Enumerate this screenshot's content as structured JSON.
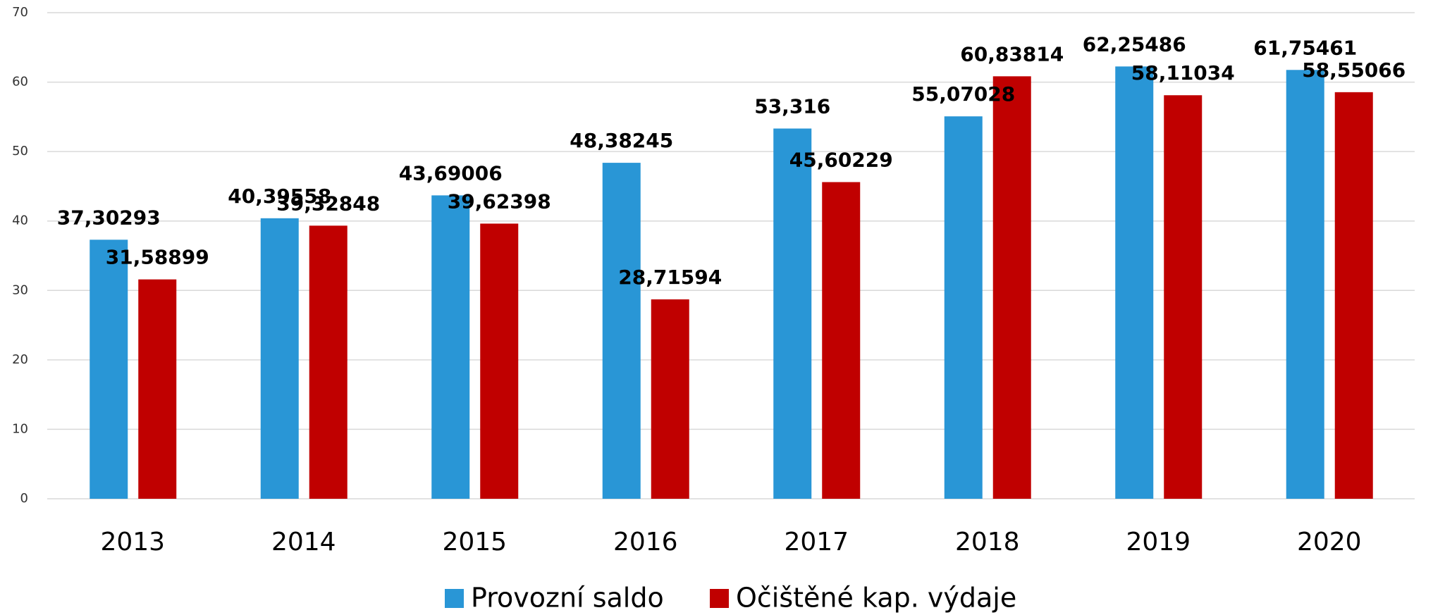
{
  "chart_data": {
    "type": "bar",
    "categories": [
      "2013",
      "2014",
      "2015",
      "2016",
      "2017",
      "2018",
      "2019",
      "2020"
    ],
    "series": [
      {
        "name": "Provozní saldo",
        "color": "#2996d6",
        "values": [
          37.30293,
          40.39558,
          43.69006,
          48.38245,
          53.316,
          55.07028,
          62.25486,
          61.75461
        ],
        "value_labels": [
          "37,30293",
          "40,39558",
          "43,69006",
          "48,38245",
          "53,316",
          "55,07028",
          "62,25486",
          "61,75461"
        ]
      },
      {
        "name": "Očištěné kap. výdaje",
        "color": "#c00000",
        "values": [
          31.58899,
          39.32848,
          39.62398,
          28.71594,
          45.60229,
          60.83814,
          58.11034,
          58.55066
        ],
        "value_labels": [
          "31,58899",
          "39,32848",
          "39,62398",
          "28,71594",
          "45,60229",
          "60,83814",
          "58,11034",
          "58,55066"
        ]
      }
    ],
    "ylim": [
      0,
      70
    ],
    "yticks": [
      0,
      10,
      20,
      30,
      40,
      50,
      60,
      70
    ],
    "grid": true,
    "legend": "bottom"
  }
}
